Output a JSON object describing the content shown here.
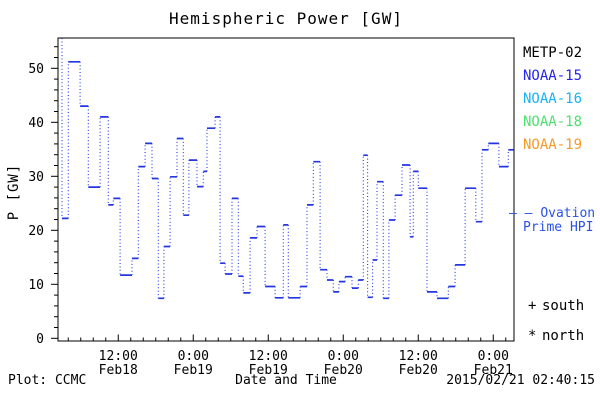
{
  "chart_data": {
    "type": "line",
    "subtype": "step-stairs-dotted-verticals",
    "title": "Hemispheric Power [GW]",
    "xlabel": "Date and Time",
    "ylabel": "P [GW]",
    "ylim": [
      -0.5,
      55.6
    ],
    "yticks": [
      0,
      10,
      20,
      30,
      40,
      50
    ],
    "y_minor_step": 2,
    "x_span_hours": 72.5,
    "x_minor_step_hours": 2,
    "grid": false,
    "xticks": [
      {
        "hour": 9,
        "time": "12:00",
        "date": "Feb18"
      },
      {
        "hour": 21,
        "time": "0:00",
        "date": "Feb19"
      },
      {
        "hour": 33,
        "time": "12:00",
        "date": "Feb19"
      },
      {
        "hour": 45,
        "time": "0:00",
        "date": "Feb20"
      },
      {
        "hour": 57,
        "time": "12:00",
        "date": "Feb20"
      },
      {
        "hour": 69,
        "time": "0:00",
        "date": "Feb21"
      }
    ],
    "series": [
      {
        "name": "NOAA-15 Ovation Prime HPI",
        "color": "#2336e2",
        "points": [
          [
            -0.05,
            55.6
          ],
          [
            0,
            22.2
          ],
          [
            1,
            51.2
          ],
          [
            2.9,
            43
          ],
          [
            4.2,
            28
          ],
          [
            6.1,
            41
          ],
          [
            7.4,
            24.7
          ],
          [
            8.2,
            25.9
          ],
          [
            9.3,
            11.7
          ],
          [
            11.2,
            14.8
          ],
          [
            12.2,
            31.8
          ],
          [
            13.3,
            36.1
          ],
          [
            14.4,
            29.6
          ],
          [
            15.4,
            7.4
          ],
          [
            16.3,
            17
          ],
          [
            17.3,
            29.9
          ],
          [
            18.4,
            37
          ],
          [
            19.4,
            22.8
          ],
          [
            20.3,
            33
          ],
          [
            21.6,
            28.1
          ],
          [
            22.6,
            30.9
          ],
          [
            23.2,
            38.9
          ],
          [
            24.5,
            41
          ],
          [
            25.3,
            13.9
          ],
          [
            26.1,
            11.9
          ],
          [
            27.2,
            25.9
          ],
          [
            28.2,
            11.5
          ],
          [
            29,
            8.4
          ],
          [
            30.1,
            18.6
          ],
          [
            31.2,
            20.7
          ],
          [
            32.5,
            9.6
          ],
          [
            34.1,
            7.5
          ],
          [
            35.4,
            21
          ],
          [
            36.2,
            7.5
          ],
          [
            38.1,
            9.6
          ],
          [
            39.2,
            24.7
          ],
          [
            40.2,
            32.7
          ],
          [
            41.3,
            12.7
          ],
          [
            42.4,
            10.8
          ],
          [
            43.4,
            8.6
          ],
          [
            44.3,
            10.5
          ],
          [
            45.3,
            11.4
          ],
          [
            46.4,
            9.3
          ],
          [
            47.4,
            10.8
          ],
          [
            48.2,
            33.9
          ],
          [
            48.9,
            7.6
          ],
          [
            49.7,
            14.5
          ],
          [
            50.4,
            29
          ],
          [
            51.4,
            7.4
          ],
          [
            52.3,
            21.9
          ],
          [
            53.3,
            26.5
          ],
          [
            54.4,
            32.1
          ],
          [
            55.7,
            18.8
          ],
          [
            56.2,
            30.9
          ],
          [
            57,
            27.8
          ],
          [
            58.4,
            8.6
          ],
          [
            60,
            7.4
          ],
          [
            61.8,
            9.6
          ],
          [
            62.9,
            13.6
          ],
          [
            64.5,
            27.8
          ],
          [
            66.2,
            21.6
          ],
          [
            67.2,
            34.9
          ],
          [
            68.2,
            36.1
          ],
          [
            69.9,
            31.8
          ],
          [
            71.4,
            34.9
          ]
        ]
      }
    ]
  },
  "legend": {
    "satellites": [
      {
        "label": "METP-02",
        "color": "#000000"
      },
      {
        "label": "NOAA-15",
        "color": "#2525e8"
      },
      {
        "label": "NOAA-16",
        "color": "#1ab2f5"
      },
      {
        "label": "NOAA-18",
        "color": "#4fe070"
      },
      {
        "label": "NOAA-19",
        "color": "#f59a28"
      }
    ],
    "ovation": {
      "marker": "– –",
      "line1": "Ovation",
      "line2": "Prime HPI",
      "color": "#2a52e8"
    },
    "markers": [
      {
        "symbol": "+",
        "label": "south"
      },
      {
        "symbol": "*",
        "label": "north"
      }
    ]
  },
  "footer": {
    "left": "Plot: CCMC",
    "timestamp": "2015/02/21 02:40:15"
  }
}
